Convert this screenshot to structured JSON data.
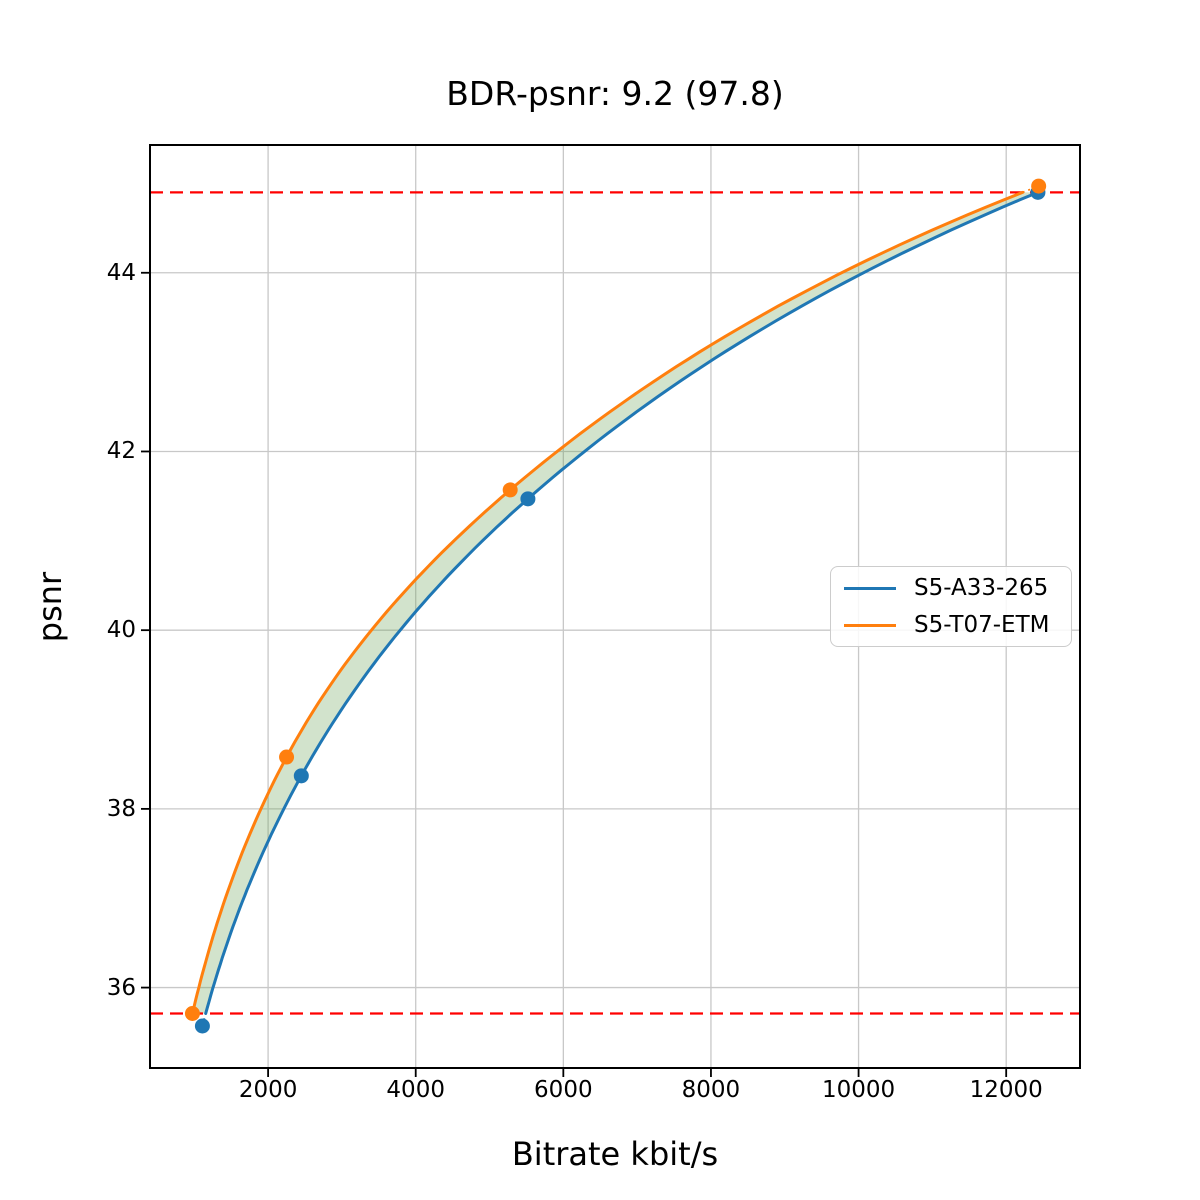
{
  "chart_data": {
    "type": "line",
    "title": "BDR-psnr: 9.2 (97.8)",
    "xlabel": "Bitrate kbit/s",
    "ylabel": "psnr",
    "xlim": [
      400,
      13000
    ],
    "ylim": [
      35.1,
      45.43
    ],
    "xticks": [
      2000,
      4000,
      6000,
      8000,
      10000,
      12000
    ],
    "yticks": [
      36,
      38,
      40,
      42,
      44
    ],
    "grid": true,
    "grid_color": "#c8c8c8",
    "legend_position": "center-right",
    "series": [
      {
        "name": "S5-A33-265",
        "color": "#1f77b4",
        "points": [
          [
            1110,
            35.57
          ],
          [
            2450,
            38.37
          ],
          [
            5520,
            41.47
          ],
          [
            12430,
            44.9
          ]
        ]
      },
      {
        "name": "S5-T07-ETM",
        "color": "#ff7f0e",
        "points": [
          [
            975,
            35.71
          ],
          [
            2250,
            38.58
          ],
          [
            5280,
            41.57
          ],
          [
            12440,
            44.97
          ]
        ]
      }
    ],
    "overlap_psnr": [
      35.71,
      44.9
    ],
    "overlap_line": {
      "color": "#ff0000",
      "style": "dashed"
    },
    "fill_between": {
      "color": "#69a356",
      "opacity": 0.3
    }
  }
}
